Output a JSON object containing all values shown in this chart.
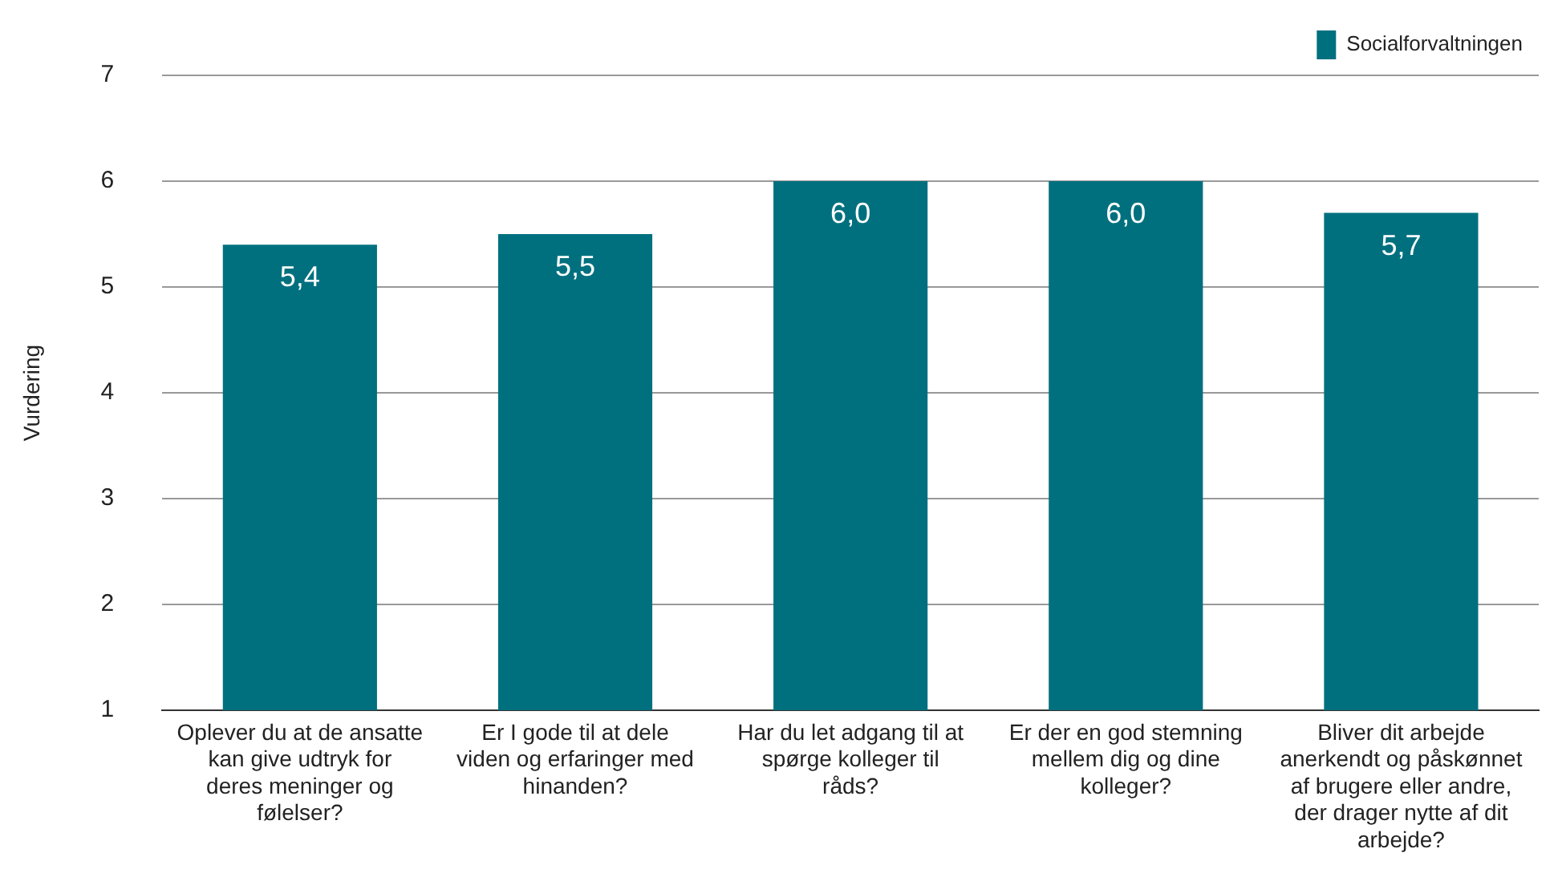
{
  "chart_data": {
    "type": "bar",
    "ylabel": "Vurdering",
    "categories": [
      "Oplever du at de ansatte kan give udtryk for deres meninger og følelser?",
      "Er I gode til at dele viden og erfaringer med hinanden?",
      "Har du let adgang til at spørge kolleger til råds?",
      "Er der en god stemning mellem dig og dine kolleger?",
      "Bliver dit arbejde anerkendt og påskønnet af brugere eller andre, der drager nytte af dit arbejde?"
    ],
    "series": [
      {
        "name": "Socialforvaltningen",
        "color": "#00707f",
        "values": [
          5.4,
          5.5,
          6.0,
          6.0,
          5.7
        ],
        "value_labels": [
          "5,4",
          "5,5",
          "6,0",
          "6,0",
          "5,7"
        ]
      }
    ],
    "ylim": [
      1,
      7
    ],
    "yticks": [
      1,
      2,
      3,
      4,
      5,
      6,
      7
    ],
    "grid": "y",
    "legend": "top right"
  }
}
